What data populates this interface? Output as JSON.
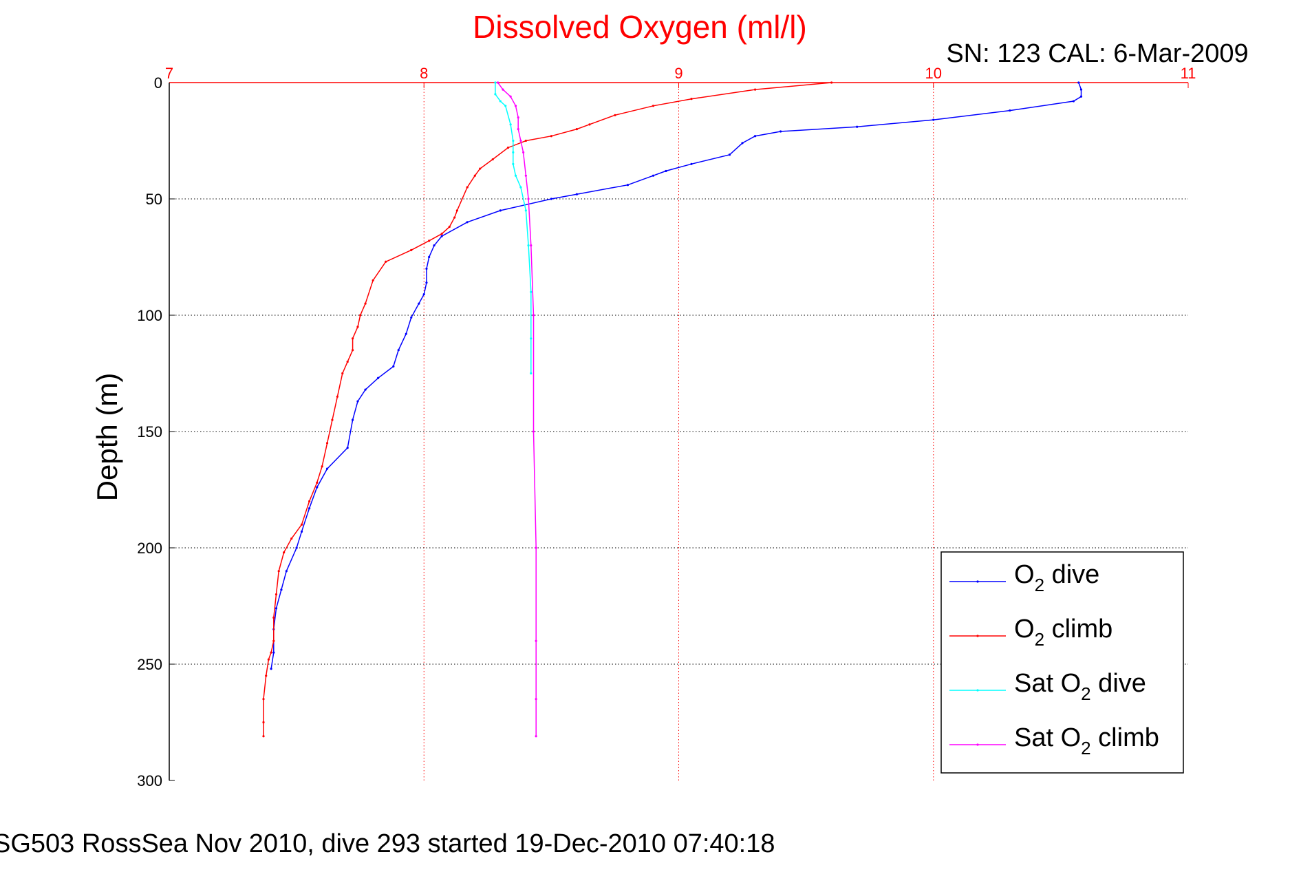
{
  "chart_data": {
    "type": "line",
    "title": "Dissolved Oxygen (ml/l)",
    "subtitle": "SN: 123  CAL: 6-Mar-2009",
    "ylabel": "Depth (m)",
    "caption": "SG503 RossSea Nov 2010, dive 293 started 19-Dec-2010 07:40:18",
    "xlim": [
      7,
      11
    ],
    "ylim": [
      0,
      300
    ],
    "y_reversed": true,
    "x_axis_position": "top",
    "xticks": [
      7,
      8,
      9,
      10,
      11
    ],
    "xtick_labels": [
      "7",
      "8",
      "9",
      "10",
      "11"
    ],
    "yticks": [
      0,
      50,
      100,
      150,
      200,
      250,
      300
    ],
    "ytick_labels": [
      "0",
      "50",
      "100",
      "150",
      "200",
      "250",
      "300"
    ],
    "grid": true,
    "legend_position": "bottom-right",
    "colors": {
      "title": "#ff0000",
      "x_axis": "#ff0000",
      "grid_x": "#ff0000",
      "grid_y": "#000000"
    },
    "series": [
      {
        "name": "O2 dive",
        "legend_main": "O",
        "legend_sub": "2",
        "legend_rest": " dive",
        "color": "#0000ff",
        "x": [
          10.57,
          10.58,
          10.58,
          10.55,
          10.3,
          10.0,
          9.7,
          9.4,
          9.3,
          9.25,
          9.2,
          9.05,
          8.95,
          8.9,
          8.8,
          8.6,
          8.5,
          8.3,
          8.17,
          8.07,
          8.04,
          8.02,
          8.01,
          8.01,
          8.0,
          7.98,
          7.95,
          7.93,
          7.9,
          7.88,
          7.82,
          7.77,
          7.74,
          7.72,
          7.7,
          7.62,
          7.58,
          7.55,
          7.52,
          7.5,
          7.46,
          7.44,
          7.42,
          7.41,
          7.41,
          7.4
        ],
        "y": [
          0,
          3,
          6,
          8,
          12,
          16,
          19,
          21,
          23,
          26,
          31,
          35,
          38,
          40,
          44,
          48,
          50,
          55,
          60,
          66,
          70,
          75,
          80,
          86,
          91,
          95,
          101,
          108,
          115,
          122,
          127,
          132,
          137,
          145,
          157,
          166,
          174,
          183,
          193,
          200,
          210,
          218,
          226,
          235,
          245,
          252
        ]
      },
      {
        "name": "O2 climb",
        "legend_main": "O",
        "legend_sub": "2",
        "legend_rest": " climb",
        "color": "#ff0000",
        "x": [
          9.6,
          9.3,
          9.05,
          8.9,
          8.75,
          8.65,
          8.6,
          8.5,
          8.4,
          8.33,
          8.27,
          8.22,
          8.2,
          8.17,
          8.13,
          8.12,
          8.1,
          8.07,
          8.02,
          7.95,
          7.85,
          7.8,
          7.77,
          7.75,
          7.74,
          7.72,
          7.72,
          7.7,
          7.68,
          7.66,
          7.64,
          7.62,
          7.6,
          7.58,
          7.55,
          7.52,
          7.48,
          7.45,
          7.43,
          7.42,
          7.41,
          7.41,
          7.4,
          7.39,
          7.38,
          7.37,
          7.37,
          7.37
        ],
        "y": [
          0,
          3,
          7,
          10,
          14,
          18,
          20,
          23,
          25,
          28,
          33,
          37,
          40,
          45,
          55,
          58,
          62,
          65,
          68,
          72,
          77,
          85,
          95,
          100,
          105,
          110,
          115,
          120,
          125,
          135,
          145,
          155,
          165,
          172,
          180,
          190,
          196,
          202,
          210,
          220,
          230,
          240,
          245,
          248,
          255,
          265,
          275,
          281
        ]
      },
      {
        "name": "Sat O2 dive",
        "legend_main": "Sat O",
        "legend_sub": "2",
        "legend_rest": " dive",
        "color": "#00ffff",
        "x": [
          8.28,
          8.28,
          8.3,
          8.32,
          8.34,
          8.35,
          8.35,
          8.35,
          8.36,
          8.38,
          8.4,
          8.41,
          8.42,
          8.42,
          8.42
        ],
        "y": [
          0,
          5,
          8,
          10,
          18,
          25,
          30,
          35,
          40,
          45,
          55,
          70,
          90,
          110,
          125
        ]
      },
      {
        "name": "Sat O2 climb",
        "legend_main": "Sat O",
        "legend_sub": "2",
        "legend_rest": " climb",
        "color": "#ff00ff",
        "x": [
          8.29,
          8.31,
          8.34,
          8.36,
          8.37,
          8.37,
          8.38,
          8.39,
          8.4,
          8.41,
          8.42,
          8.43,
          8.43,
          8.44,
          8.44,
          8.44,
          8.44
        ],
        "y": [
          0,
          3,
          6,
          10,
          15,
          20,
          25,
          30,
          40,
          50,
          70,
          100,
          150,
          200,
          240,
          265,
          281
        ]
      }
    ]
  }
}
